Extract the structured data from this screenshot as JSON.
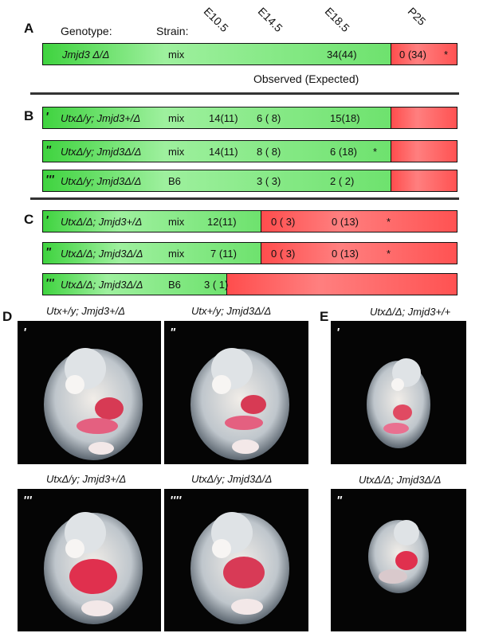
{
  "panels": {
    "A": "A",
    "B": "B",
    "C": "C",
    "D": "D",
    "E": "E"
  },
  "header": {
    "genotype_label": "Genotype:",
    "strain_label": "Strain:",
    "stages": [
      "E10.5",
      "E14.5",
      "E18.5",
      "P25"
    ]
  },
  "observed_expected": "Observed (Expected)",
  "rows": [
    {
      "prime": "",
      "genotype": "Jmjd3 Δ/Δ",
      "strain": "mix",
      "e10_5": "",
      "e14_5": "",
      "e18_5": "34(44)",
      "p25": "0 (34)",
      "star": "*",
      "p25_star": "*"
    },
    {
      "prime": "'",
      "genotype": "UtxΔ/y; Jmjd3+/Δ",
      "strain": "mix",
      "e10_5": "14(11)",
      "e14_5": "6 ( 8)",
      "e18_5": "15(18)",
      "p25": "",
      "star": ""
    },
    {
      "prime": "\"",
      "genotype": "UtxΔ/y; Jmjd3Δ/Δ",
      "strain": "mix",
      "e10_5": "14(11)",
      "e14_5": "8 ( 8)",
      "e18_5": "6 (18)",
      "p25": "",
      "star": "*"
    },
    {
      "prime": "'''",
      "genotype": "UtxΔ/y; Jmjd3Δ/Δ",
      "strain": "B6",
      "e10_5": "",
      "e14_5": "3 ( 3)",
      "e18_5": "2 ( 2)",
      "p25": "",
      "star": ""
    },
    {
      "prime": "'",
      "genotype": "UtxΔ/Δ; Jmjd3+/Δ",
      "strain": "mix",
      "e10_5": "12(11)",
      "e14_5": "0 ( 3)",
      "e18_5": "0 (13)",
      "p25": "",
      "star": "*"
    },
    {
      "prime": "\"",
      "genotype": "UtxΔ/Δ; Jmjd3Δ/Δ",
      "strain": "mix",
      "e10_5": "7 (11)",
      "e14_5": "0 ( 3)",
      "e18_5": "0 (13)",
      "p25": "",
      "star": "*"
    },
    {
      "prime": "'''",
      "genotype": "UtxΔ/Δ; Jmjd3Δ/Δ",
      "strain": "B6",
      "e10_5": "3 ( 1)",
      "e14_5": "",
      "e18_5": "",
      "p25": "",
      "star": ""
    }
  ],
  "photos": [
    {
      "label": "'",
      "caption": "Utx+/y; Jmjd3+/Δ"
    },
    {
      "label": "\"",
      "caption": "Utx+/y; Jmjd3Δ/Δ"
    },
    {
      "label": "'''",
      "caption": "UtxΔ/y; Jmjd3+/Δ"
    },
    {
      "label": "''''",
      "caption": "UtxΔ/y; Jmjd3Δ/Δ"
    },
    {
      "label": "'",
      "caption": "UtxΔ/Δ; Jmjd3+/+"
    },
    {
      "label": "\"",
      "caption": "UtxΔ/Δ; Jmjd3Δ/Δ"
    }
  ]
}
